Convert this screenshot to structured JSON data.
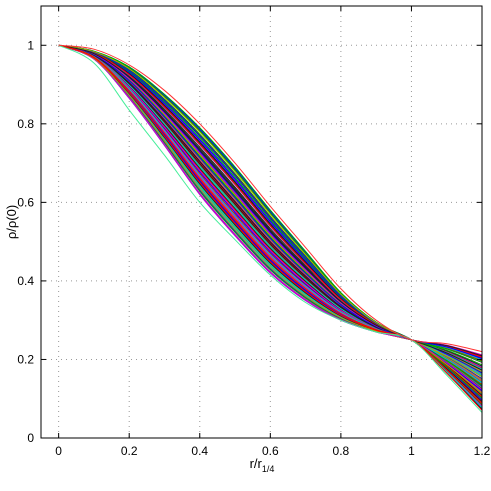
{
  "chart_data": {
    "type": "line",
    "xlabel": "r/r",
    "xlabel_sub": "1/4",
    "ylabel": "ρ/ρ(0)",
    "xlim": [
      -0.05,
      1.2
    ],
    "ylim": [
      0,
      1.1
    ],
    "xticks": [
      0,
      0.2,
      0.4,
      0.6,
      0.8,
      1,
      1.2
    ],
    "yticks": [
      0,
      0.2,
      0.4,
      0.6,
      0.8,
      1
    ],
    "xtick_labels": [
      "0",
      "0.2",
      "0.4",
      "0.6",
      "0.8",
      "1",
      "1.2"
    ],
    "ytick_labels": [
      "0",
      "0.2",
      "0.4",
      "0.6",
      "0.8",
      "1"
    ],
    "grid": true,
    "grid_style": "dotted",
    "box": true,
    "legend": "none",
    "colors": [
      "#ff0000",
      "#00aa00",
      "#0000ff",
      "#00cccc",
      "#cc00cc",
      "#aaaa00",
      "#222222"
    ],
    "x_samples": [
      0,
      0.1,
      0.2,
      0.3,
      0.4,
      0.5,
      0.6,
      0.7,
      0.8,
      0.9,
      1.0,
      1.1,
      1.2
    ],
    "envelope": {
      "upper": [
        1.0,
        0.985,
        0.945,
        0.875,
        0.79,
        0.69,
        0.58,
        0.475,
        0.37,
        0.295,
        0.25,
        0.238,
        0.215
      ],
      "lower": [
        1.0,
        0.965,
        0.865,
        0.745,
        0.62,
        0.515,
        0.42,
        0.35,
        0.3,
        0.27,
        0.25,
        0.165,
        0.07
      ]
    },
    "series_count": 120,
    "extra_curves": [
      {
        "x": [
          0,
          0.1,
          0.2,
          0.3,
          0.4,
          0.5,
          0.6,
          0.7,
          0.8,
          0.9,
          1.0,
          1.1,
          1.2
        ],
        "y": [
          1.0,
          0.955,
          0.835,
          0.72,
          0.6,
          0.505,
          0.415,
          0.345,
          0.3,
          0.27,
          0.25,
          0.16,
          0.065
        ],
        "color": "#44ee99"
      },
      {
        "x": [
          0,
          0.1,
          0.2,
          0.3,
          0.4,
          0.5,
          0.6,
          0.7,
          0.8,
          0.9,
          1.0,
          1.1,
          1.2
        ],
        "y": [
          1.0,
          0.99,
          0.95,
          0.885,
          0.8,
          0.7,
          0.59,
          0.485,
          0.38,
          0.3,
          0.25,
          0.24,
          0.22
        ],
        "color": "#ff3333"
      }
    ]
  }
}
